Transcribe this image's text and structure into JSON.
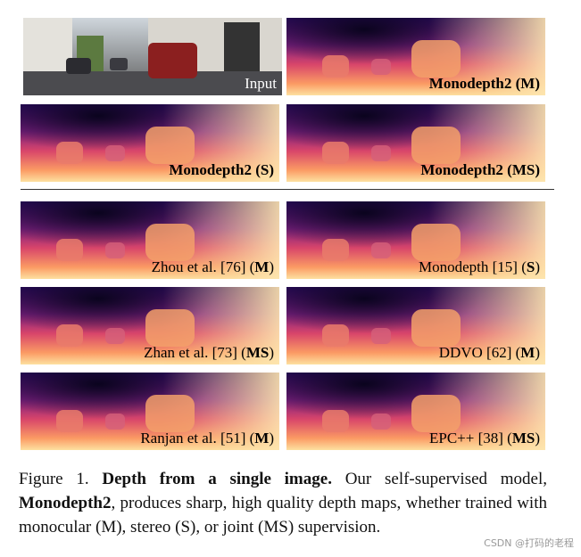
{
  "figure": {
    "panels": [
      {
        "kind": "input",
        "label": [
          {
            "text": "Input",
            "bold": false
          }
        ]
      },
      {
        "kind": "depth",
        "label": [
          {
            "text": "Monodepth2 (M)",
            "bold": true
          }
        ]
      },
      {
        "kind": "depth",
        "label": [
          {
            "text": "Monodepth2 (S)",
            "bold": true
          }
        ]
      },
      {
        "kind": "depth",
        "label": [
          {
            "text": "Monodepth2 (MS)",
            "bold": true
          }
        ]
      },
      {
        "kind": "depth",
        "label": [
          {
            "text": "Zhou et al. [76] (",
            "bold": false
          },
          {
            "text": "M",
            "bold": true
          },
          {
            "text": ")",
            "bold": false
          }
        ]
      },
      {
        "kind": "depth",
        "label": [
          {
            "text": "Monodepth [15] (",
            "bold": false
          },
          {
            "text": "S",
            "bold": true
          },
          {
            "text": ")",
            "bold": false
          }
        ]
      },
      {
        "kind": "depth",
        "label": [
          {
            "text": "Zhan et al. [73] (",
            "bold": false
          },
          {
            "text": "MS",
            "bold": true
          },
          {
            "text": ")",
            "bold": false
          }
        ]
      },
      {
        "kind": "depth",
        "label": [
          {
            "text": "DDVO [62] (",
            "bold": false
          },
          {
            "text": "M",
            "bold": true
          },
          {
            "text": ")",
            "bold": false
          }
        ]
      },
      {
        "kind": "depth",
        "label": [
          {
            "text": "Ranjan et al. [51] (",
            "bold": false
          },
          {
            "text": "M",
            "bold": true
          },
          {
            "text": ")",
            "bold": false
          }
        ]
      },
      {
        "kind": "depth",
        "label": [
          {
            "text": "EPC++ [38] (",
            "bold": false
          },
          {
            "text": "MS",
            "bold": true
          },
          {
            "text": ")",
            "bold": false
          }
        ]
      }
    ],
    "caption": [
      {
        "text": "Figure 1. ",
        "bold": false
      },
      {
        "text": "Depth from a single image.",
        "bold": true
      },
      {
        "text": " Our self-supervised model, ",
        "bold": false
      },
      {
        "text": "Monodepth2",
        "bold": true
      },
      {
        "text": ", produces sharp, high quality depth maps, whether trained with monocular (M), stereo (S), or joint (MS) supervision.",
        "bold": false
      }
    ],
    "watermark": "CSDN @打码的老程"
  }
}
